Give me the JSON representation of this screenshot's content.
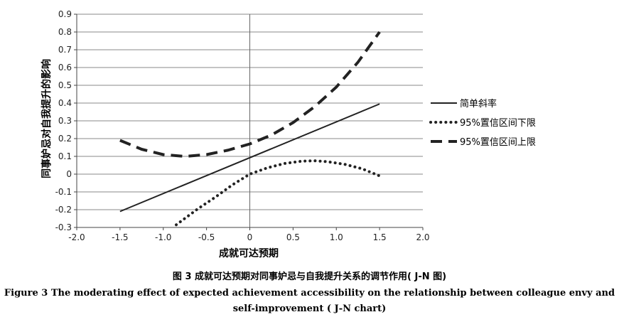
{
  "chart_data": {
    "type": "line",
    "xlabel": "成就可达预期",
    "ylabel": "同事妒忌对自我提升的影响",
    "xlim": [
      -2.0,
      2.0
    ],
    "ylim": [
      -0.3,
      0.9
    ],
    "x_ticks": [
      "-2.0",
      "-1.5",
      "-1.0",
      "-0.5",
      "0",
      "0.5",
      "1.0",
      "1.5",
      "2.0"
    ],
    "y_ticks": [
      "0.9",
      "0.8",
      "0.7",
      "0.6",
      "0.5",
      "0.4",
      "0.3",
      "0.2",
      "0.1",
      "0",
      "-0.1",
      "-0.2",
      "-0.3"
    ],
    "grid": "horizontal",
    "legend_position": "right",
    "series": [
      {
        "name": "简单斜率",
        "style": "solid",
        "x": [
          -1.5,
          1.5
        ],
        "y": [
          -0.21,
          0.395
        ]
      },
      {
        "name": "95%置信区间下限",
        "style": "dotted",
        "x": [
          -0.85,
          -0.6,
          -0.4,
          -0.2,
          0,
          0.2,
          0.4,
          0.6,
          0.75,
          0.9,
          1.1,
          1.3,
          1.5
        ],
        "y": [
          -0.285,
          -0.195,
          -0.13,
          -0.06,
          0.0,
          0.035,
          0.06,
          0.073,
          0.075,
          0.07,
          0.055,
          0.03,
          -0.01
        ]
      },
      {
        "name": "95%置信区间上限",
        "style": "dashed",
        "x": [
          -1.5,
          -1.25,
          -1.0,
          -0.75,
          -0.5,
          -0.25,
          0,
          0.25,
          0.5,
          0.75,
          1.0,
          1.25,
          1.5
        ],
        "y": [
          0.19,
          0.14,
          0.11,
          0.1,
          0.11,
          0.135,
          0.17,
          0.22,
          0.29,
          0.38,
          0.49,
          0.63,
          0.8
        ]
      }
    ]
  },
  "caption": {
    "cn": "图 3  成就可达预期对同事妒忌与自我提升关系的调节作用( J-N 图)",
    "en_line1": "Figure 3  The moderating effect of expected achievement accessibility on the relationship between colleague envy and",
    "en_line2": "self-improvement ( J-N chart)"
  }
}
